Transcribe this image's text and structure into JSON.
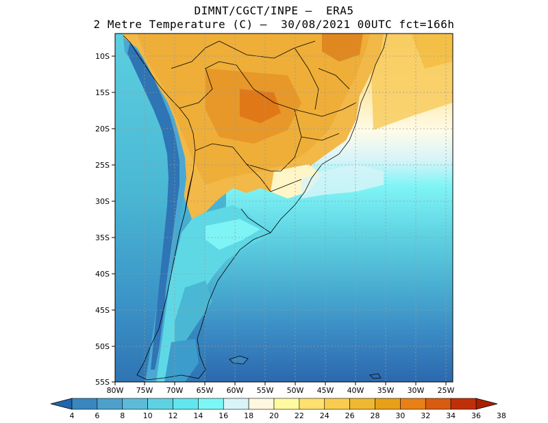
{
  "title": {
    "line1": "DIMNT/CGCT/INPE –  ERA5",
    "line2": "2 Metre Temperature (C) –  30/08/2021 00UTC fct=166h"
  },
  "axes": {
    "lat_labels": [
      "10S",
      "15S",
      "20S",
      "25S",
      "30S",
      "35S",
      "40S",
      "45S",
      "50S",
      "55S"
    ],
    "lon_labels": [
      "80W",
      "75W",
      "70W",
      "65W",
      "60W",
      "55W",
      "50W",
      "45W",
      "40W",
      "35W",
      "30W",
      "25W"
    ]
  },
  "colorbar": {
    "values": [
      "4",
      "6",
      "8",
      "10",
      "12",
      "14",
      "16",
      "18",
      "20",
      "22",
      "24",
      "26",
      "28",
      "30",
      "32",
      "34",
      "36",
      "38"
    ],
    "colors": [
      "#2166ac",
      "#3a86be",
      "#4ea0cc",
      "#5cbcd8",
      "#5fd2e2",
      "#62e6ee",
      "#7df6f6",
      "#d8f4f8",
      "#fff8e0",
      "#fffaa0",
      "#ffe070",
      "#f8cc50",
      "#f0b830",
      "#e8a018",
      "#e88018",
      "#d85c10",
      "#c03008",
      "#a82000"
    ]
  }
}
